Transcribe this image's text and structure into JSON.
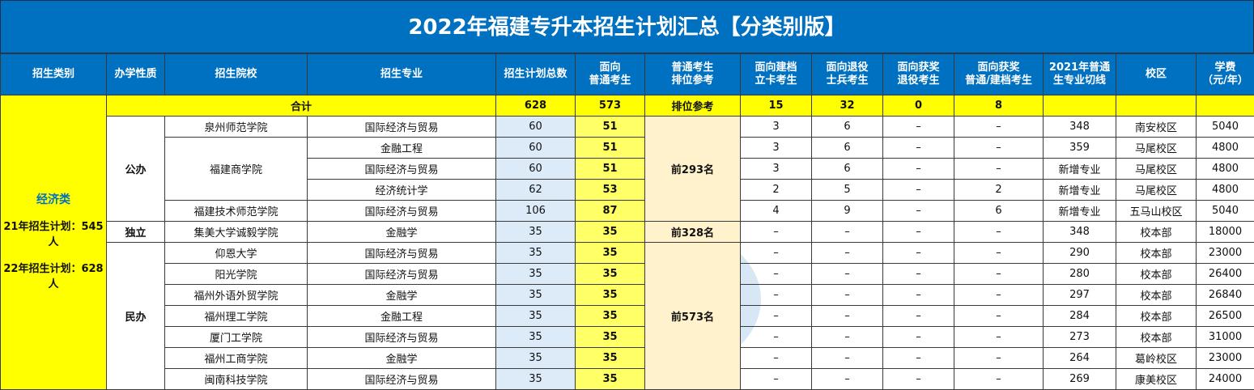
{
  "title": "2022年福建专升本招生计划汇总【分类别版】",
  "headers": [
    "招生类别",
    "办学性质",
    "招生院校",
    "招生专业",
    "招生计划总数",
    "面向\n普通考生",
    "普通考生\n排位参考",
    "面向建档\n立卡考生",
    "面向退役\n士兵考生",
    "面向获奖\n退役考生",
    "面向获奖\n普通/建档考生",
    "2021年普通\n生专业切线",
    "校区",
    "学费\n（元/年）"
  ],
  "category": {
    "name": "经济类",
    "plan21": "21年招生计划：545人",
    "plan22": "22年招生计划：628人"
  },
  "total": {
    "label": "合计",
    "plan_total": "628",
    "general": "573",
    "rank_ref": "排位参考",
    "poverty": "15",
    "veteran": "32",
    "award_veteran": "0",
    "award_general": "8"
  },
  "nature": {
    "public": "公办",
    "independent": "独立",
    "private": "民办"
  },
  "rank": {
    "public": "前293名",
    "independent": "前328名",
    "private": "前573名"
  },
  "rows": [
    {
      "school": "泉州师范学院",
      "major": "国际经济与贸易",
      "plan": "60",
      "general": "51",
      "poverty": "3",
      "veteran": "6",
      "award_veteran": "–",
      "award_general": "–",
      "cutline": "348",
      "campus": "南安校区",
      "fee": "5040"
    },
    {
      "school": "福建商学院",
      "major": "金融工程",
      "plan": "60",
      "general": "51",
      "poverty": "3",
      "veteran": "6",
      "award_veteran": "–",
      "award_general": "–",
      "cutline": "359",
      "campus": "马尾校区",
      "fee": "4800"
    },
    {
      "school": "",
      "major": "国际经济与贸易",
      "plan": "60",
      "general": "51",
      "poverty": "3",
      "veteran": "6",
      "award_veteran": "–",
      "award_general": "–",
      "cutline": "新增专业",
      "campus": "马尾校区",
      "fee": "4800"
    },
    {
      "school": "",
      "major": "经济统计学",
      "plan": "62",
      "general": "53",
      "poverty": "2",
      "veteran": "5",
      "award_veteran": "–",
      "award_general": "2",
      "cutline": "新增专业",
      "campus": "马尾校区",
      "fee": "4800"
    },
    {
      "school": "福建技术师范学院",
      "major": "国际经济与贸易",
      "plan": "106",
      "general": "87",
      "poverty": "4",
      "veteran": "9",
      "award_veteran": "–",
      "award_general": "6",
      "cutline": "新增专业",
      "campus": "五马山校区",
      "fee": "5040"
    },
    {
      "school": "集美大学诚毅学院",
      "major": "金融学",
      "plan": "35",
      "general": "35",
      "poverty": "–",
      "veteran": "–",
      "award_veteran": "–",
      "award_general": "–",
      "cutline": "348",
      "campus": "校本部",
      "fee": "18000"
    },
    {
      "school": "仰恩大学",
      "major": "国际经济与贸易",
      "plan": "35",
      "general": "35",
      "poverty": "–",
      "veteran": "–",
      "award_veteran": "–",
      "award_general": "–",
      "cutline": "290",
      "campus": "校本部",
      "fee": "23000"
    },
    {
      "school": "阳光学院",
      "major": "国际经济与贸易",
      "plan": "35",
      "general": "35",
      "poverty": "–",
      "veteran": "–",
      "award_veteran": "–",
      "award_general": "–",
      "cutline": "280",
      "campus": "校本部",
      "fee": "26400"
    },
    {
      "school": "福州外语外贸学院",
      "major": "金融学",
      "plan": "35",
      "general": "35",
      "poverty": "–",
      "veteran": "–",
      "award_veteran": "–",
      "award_general": "–",
      "cutline": "297",
      "campus": "校本部",
      "fee": "26840"
    },
    {
      "school": "福州理工学院",
      "major": "金融工程",
      "plan": "35",
      "general": "35",
      "poverty": "–",
      "veteran": "–",
      "award_veteran": "–",
      "award_general": "–",
      "cutline": "284",
      "campus": "校本部",
      "fee": "26500"
    },
    {
      "school": "厦门工学院",
      "major": "国际经济与贸易",
      "plan": "35",
      "general": "35",
      "poverty": "–",
      "veteran": "–",
      "award_veteran": "–",
      "award_general": "–",
      "cutline": "273",
      "campus": "校本部",
      "fee": "31000"
    },
    {
      "school": "福州工商学院",
      "major": "金融学",
      "plan": "35",
      "general": "35",
      "poverty": "–",
      "veteran": "–",
      "award_veteran": "–",
      "award_general": "–",
      "cutline": "264",
      "campus": "葛岭校区",
      "fee": "23000"
    },
    {
      "school": "闽南科技学院",
      "major": "国际经济与贸易",
      "plan": "35",
      "general": "35",
      "poverty": "–",
      "veteran": "–",
      "award_veteran": "–",
      "award_general": "–",
      "cutline": "269",
      "campus": "康美校区",
      "fee": "24000"
    }
  ]
}
